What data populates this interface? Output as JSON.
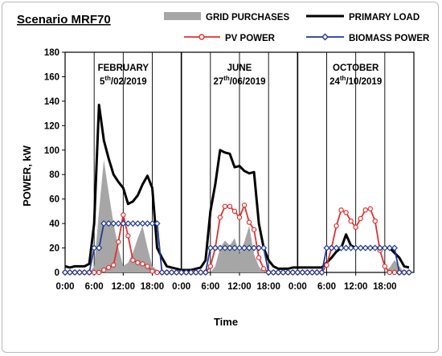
{
  "chart_data": {
    "type": "line",
    "title": "Scenario MRF70",
    "xlabel": "Time",
    "ylabel": "POWER, kW",
    "ylim": [
      0,
      180
    ],
    "y_ticks": [
      "0",
      "20",
      "40",
      "60",
      "80",
      "100",
      "120",
      "140",
      "160",
      "180"
    ],
    "xlim": [
      0,
      72
    ],
    "x_ticks": [
      {
        "x": 0,
        "label": "0:00"
      },
      {
        "x": 6,
        "label": "6:00"
      },
      {
        "x": 12,
        "label": "12:00"
      },
      {
        "x": 18,
        "label": "18:00"
      },
      {
        "x": 24,
        "label": "0:00"
      },
      {
        "x": 30,
        "label": "6:00"
      },
      {
        "x": 36,
        "label": "12:00"
      },
      {
        "x": 42,
        "label": "18:00"
      },
      {
        "x": 48,
        "label": "0:00"
      },
      {
        "x": 54,
        "label": "6:00"
      },
      {
        "x": 60,
        "label": "12:00"
      },
      {
        "x": 66,
        "label": "18:00"
      }
    ],
    "grid": false,
    "legend_position": "top",
    "panels": [
      {
        "name": "FEBRUARY",
        "date_main": "5",
        "date_sup": "th",
        "date_rest": "/02/2019",
        "start": 0
      },
      {
        "name": "JUNE",
        "date_main": "27",
        "date_sup": "th",
        "date_rest": "/06/2019",
        "start": 24
      },
      {
        "name": "OCTOBER",
        "date_main": "24",
        "date_sup": "th",
        "date_rest": "/10/2019",
        "start": 48
      }
    ],
    "x": [
      0,
      1,
      2,
      3,
      4,
      5,
      6,
      7,
      8,
      9,
      10,
      11,
      12,
      13,
      14,
      15,
      16,
      17,
      18,
      19,
      20,
      21,
      22,
      23,
      24,
      25,
      26,
      27,
      28,
      29,
      30,
      31,
      32,
      33,
      34,
      35,
      36,
      37,
      38,
      39,
      40,
      41,
      42,
      43,
      44,
      45,
      46,
      47,
      48,
      49,
      50,
      51,
      52,
      53,
      54,
      55,
      56,
      57,
      58,
      59,
      60,
      61,
      62,
      63,
      64,
      65,
      66,
      67,
      68,
      69,
      70,
      71
    ],
    "series": [
      {
        "name": "GRID PURCHASES",
        "kind": "area",
        "color": "#a6a6a6",
        "values": [
          0,
          0,
          0,
          0,
          0,
          0,
          5,
          50,
          92,
          65,
          40,
          20,
          5,
          8,
          16,
          28,
          38,
          20,
          5,
          2,
          0,
          0,
          0,
          0,
          0,
          0,
          0,
          0,
          0,
          0,
          0,
          5,
          20,
          26,
          22,
          28,
          15,
          25,
          38,
          15,
          5,
          0,
          0,
          0,
          0,
          0,
          0,
          0,
          0,
          0,
          0,
          0,
          0,
          0,
          0,
          0,
          0,
          0,
          0,
          0,
          0,
          0,
          0,
          0,
          0,
          0,
          0,
          4,
          10,
          5,
          0,
          0
        ]
      },
      {
        "name": "PRIMARY LOAD",
        "kind": "line",
        "color": "#000000",
        "values": [
          5,
          4,
          5,
          5,
          5,
          7,
          40,
          137,
          108,
          93,
          80,
          74,
          69,
          56,
          58,
          63,
          72,
          79,
          69,
          20,
          12,
          5,
          4,
          3,
          2,
          2,
          2,
          3,
          4,
          10,
          50,
          72,
          100,
          98,
          97,
          86,
          87,
          83,
          81,
          82,
          40,
          20,
          10,
          5,
          3,
          3,
          3,
          4,
          4,
          4,
          4,
          4,
          4,
          4,
          8,
          12,
          17,
          20,
          31,
          22,
          20,
          20,
          20,
          20,
          20,
          20,
          20,
          20,
          16,
          12,
          5,
          4
        ]
      },
      {
        "name": "PV POWER",
        "kind": "line",
        "color": "#e03030",
        "values": [
          0,
          0,
          0,
          0,
          0,
          0,
          0,
          0,
          2,
          4,
          6,
          25,
          47,
          30,
          10,
          8,
          7,
          5,
          1,
          0,
          0,
          0,
          0,
          0,
          0,
          0,
          0,
          0,
          0,
          0,
          5,
          20,
          45,
          54,
          54,
          50,
          45,
          55,
          41,
          35,
          12,
          3,
          0,
          0,
          0,
          0,
          0,
          0,
          0,
          0,
          0,
          0,
          0,
          0,
          6,
          20,
          38,
          51,
          49,
          42,
          37,
          44,
          51,
          52,
          42,
          18,
          5,
          0,
          0,
          0,
          0,
          0
        ]
      },
      {
        "name": "BIOMASS POWER",
        "kind": "line",
        "color": "#1f3a93",
        "values": [
          0,
          0,
          0,
          0,
          0,
          0,
          20,
          20,
          40,
          40,
          40,
          40,
          40,
          40,
          40,
          40,
          40,
          40,
          40,
          40,
          0,
          0,
          0,
          0,
          0,
          0,
          0,
          0,
          0,
          0,
          20,
          20,
          20,
          20,
          20,
          20,
          20,
          20,
          20,
          20,
          20,
          20,
          0,
          0,
          0,
          0,
          0,
          0,
          0,
          0,
          0,
          0,
          0,
          0,
          20,
          20,
          20,
          20,
          20,
          20,
          20,
          20,
          20,
          20,
          20,
          20,
          20,
          20,
          20,
          0,
          0,
          0
        ]
      }
    ]
  }
}
